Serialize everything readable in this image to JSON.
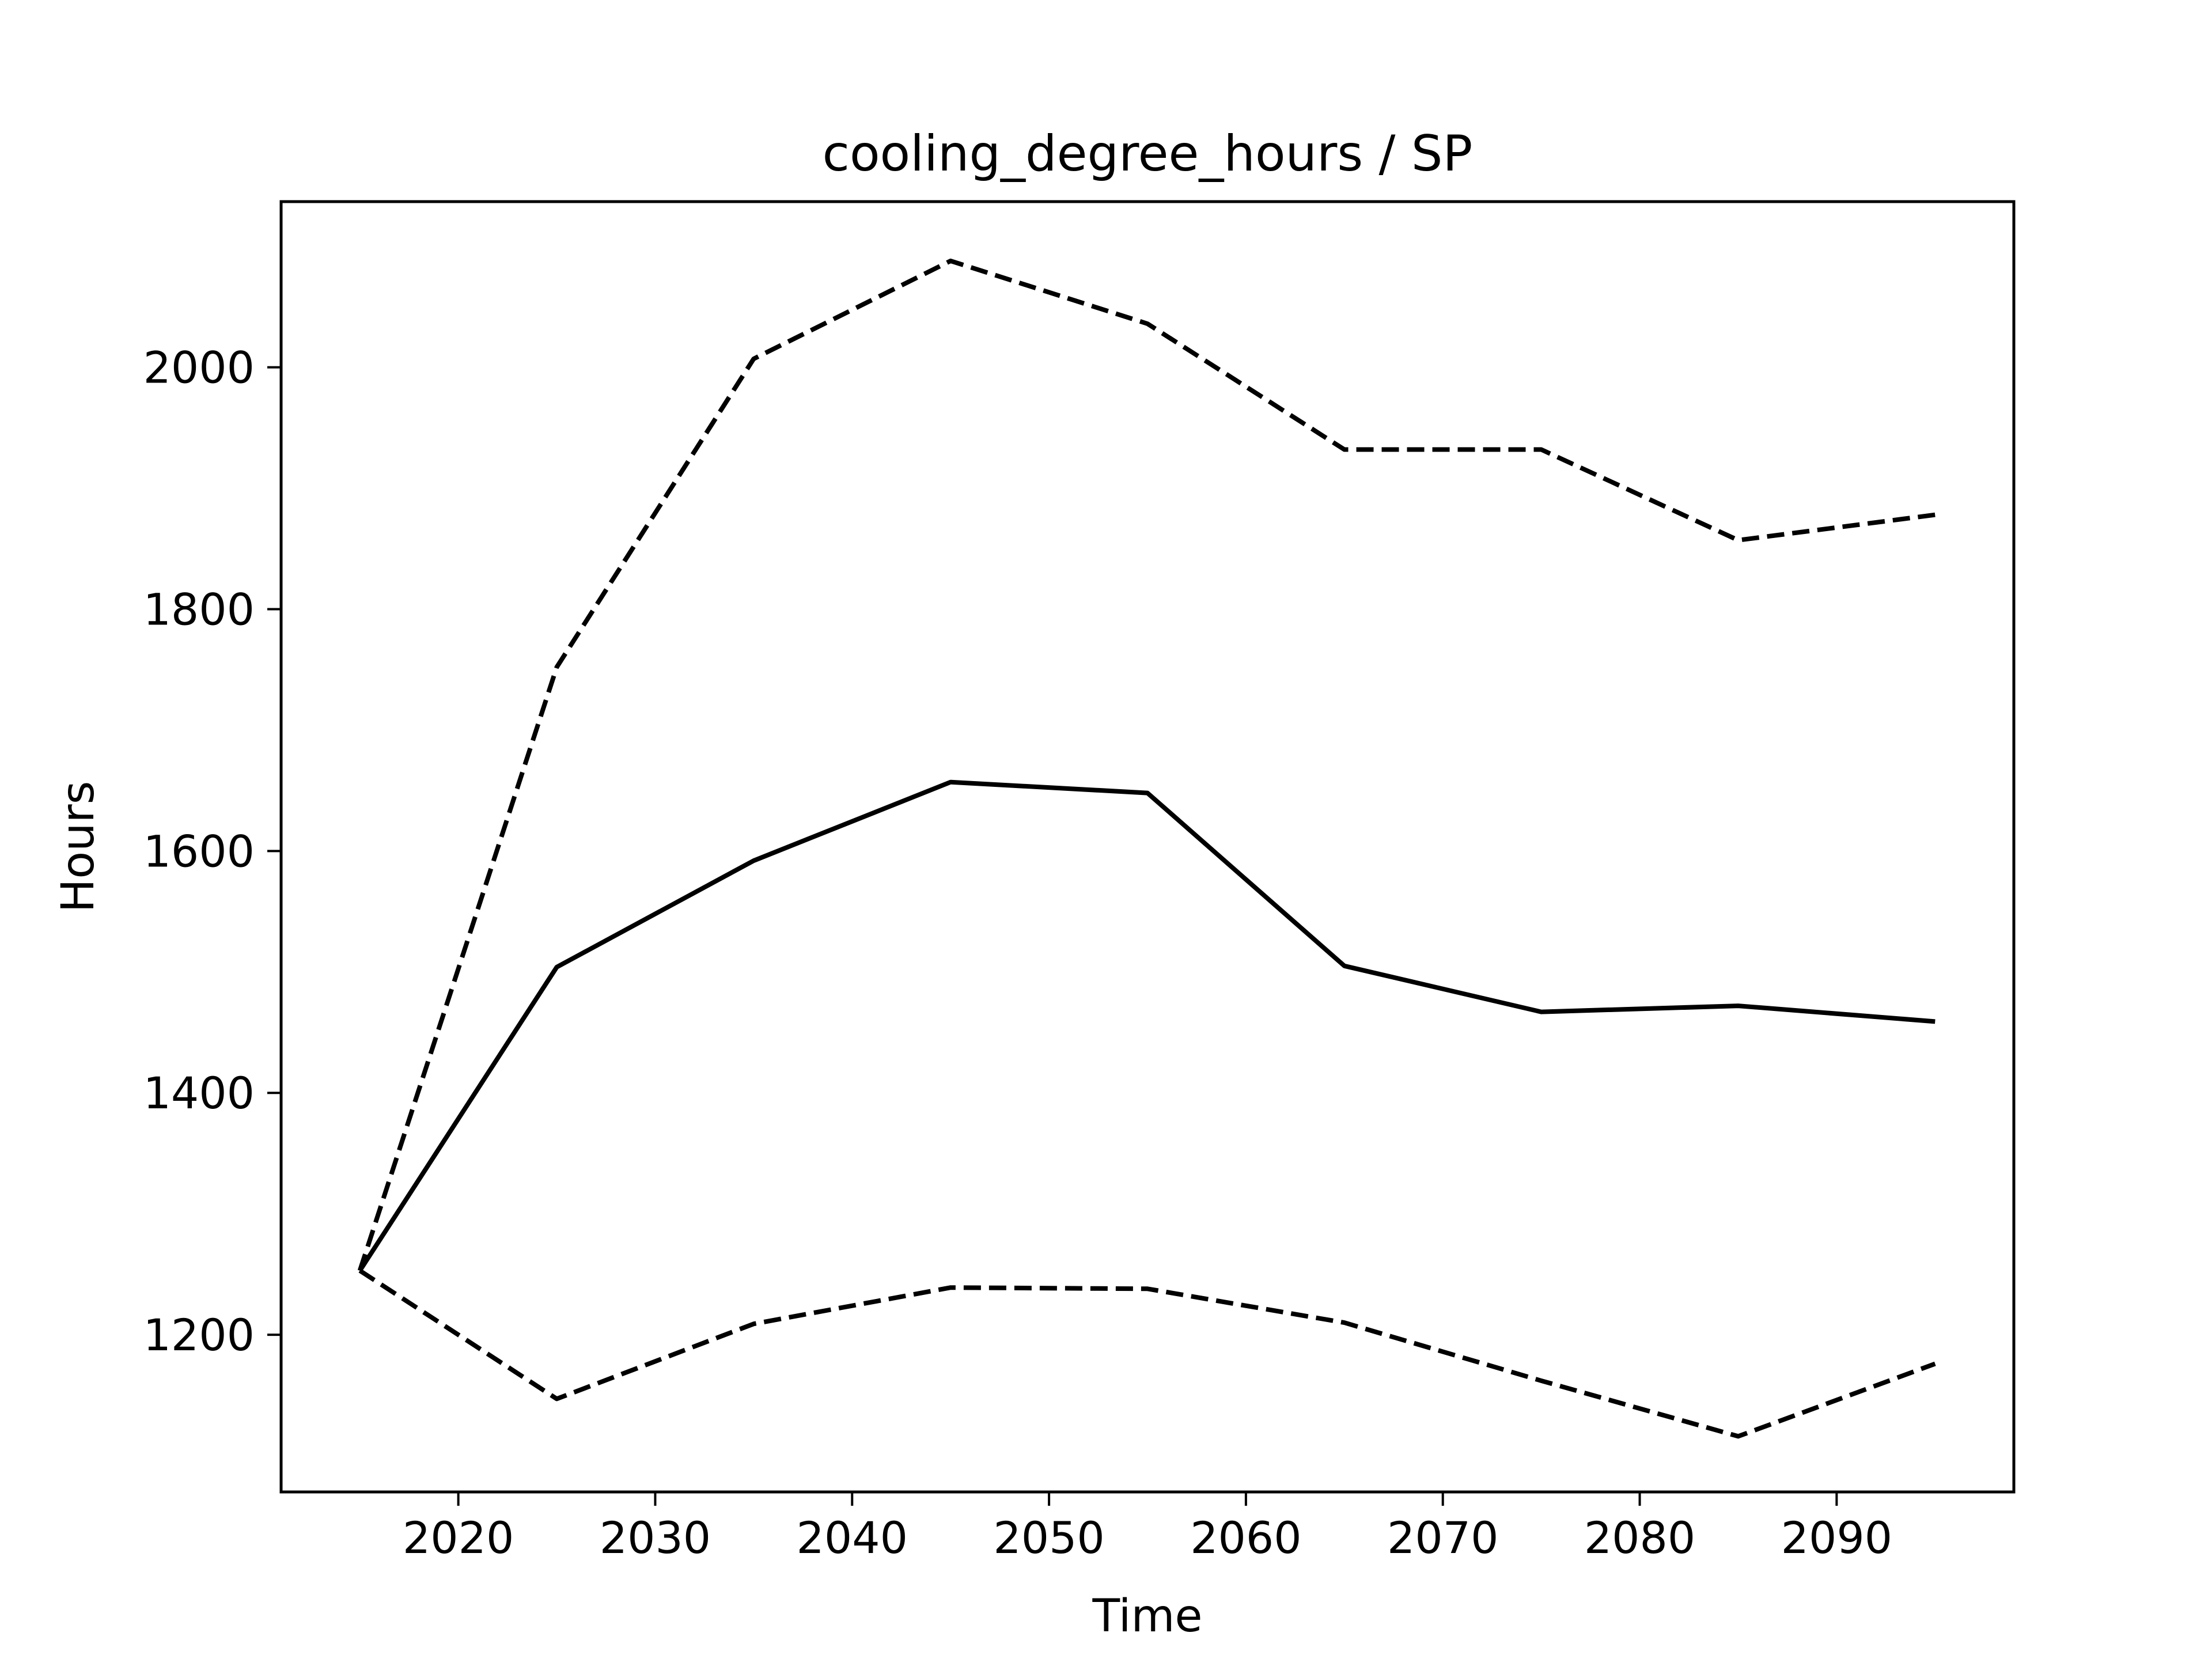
{
  "chart_data": {
    "type": "line",
    "title": "cooling_degree_hours / SP",
    "xlabel": "Time",
    "ylabel": "Hours",
    "xlim": [
      2011,
      2099
    ],
    "ylim": [
      1070,
      2137
    ],
    "x_ticks": [
      2020,
      2030,
      2040,
      2050,
      2060,
      2070,
      2080,
      2090
    ],
    "y_ticks": [
      1200,
      1400,
      1600,
      1800,
      2000
    ],
    "grid": false,
    "line_color": "#000000",
    "x": [
      2015,
      2025,
      2035,
      2045,
      2055,
      2065,
      2075,
      2085,
      2095
    ],
    "series": [
      {
        "style": "dashed",
        "values": [
          1253,
          1752,
          2007,
          2088,
          2036,
          1932,
          1932,
          1857,
          1878
        ]
      },
      {
        "style": "solid",
        "values": [
          1253,
          1504,
          1592,
          1657,
          1648,
          1505,
          1467,
          1472,
          1459
        ]
      },
      {
        "style": "dashed",
        "values": [
          1253,
          1147,
          1209,
          1239,
          1238,
          1210,
          1162,
          1116,
          1176
        ]
      }
    ]
  }
}
